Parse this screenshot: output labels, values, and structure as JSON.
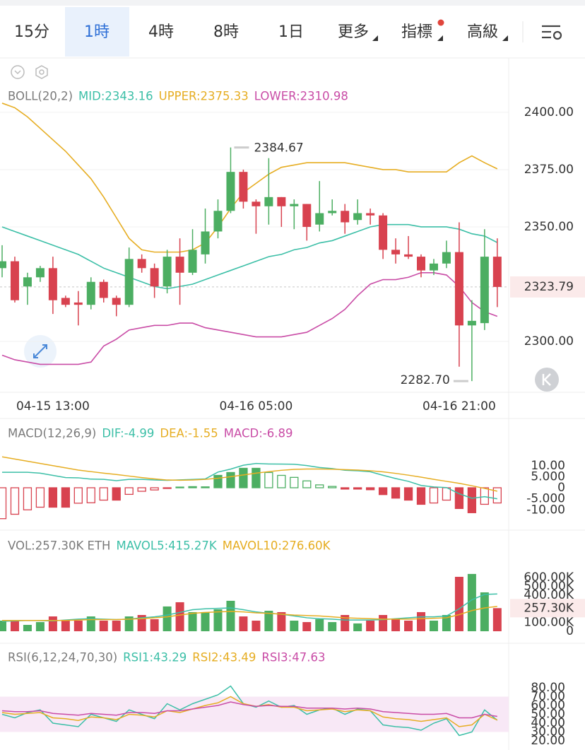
{
  "tabs": [
    "15分",
    "1時",
    "4時",
    "8時",
    "1日",
    "更多",
    "指標",
    "高級"
  ],
  "selected_tab": 1,
  "chart_data": [
    {
      "type": "candlestick",
      "legend": [
        {
          "text": "BOLL(20,2)",
          "color": "#7a7a7a"
        },
        {
          "text": "MID:2343.16",
          "color": "#3cbfa7"
        },
        {
          "text": "UPPER:2375.33",
          "color": "#e6ad22"
        },
        {
          "text": "LOWER:2310.98",
          "color": "#c94ca6"
        }
      ],
      "categories": [
        null,
        null,
        null,
        null,
        "04-15 13:00",
        null,
        null,
        null,
        null,
        null,
        null,
        null,
        null,
        null,
        null,
        null,
        null,
        null,
        null,
        null,
        "04-16 05:00",
        null,
        null,
        null,
        null,
        null,
        null,
        null,
        null,
        null,
        null,
        null,
        null,
        null,
        null,
        null,
        "04-16 21:00",
        null,
        null,
        null
      ],
      "open": [
        2332,
        2335,
        2324,
        2328,
        2332,
        2319,
        2317,
        2316,
        2326,
        2319,
        2316,
        2336,
        2332,
        2324,
        2337,
        2330,
        2338,
        2348,
        2357,
        2374,
        2361,
        2359,
        2363,
        2359,
        2360,
        2351,
        2356,
        2357,
        2353,
        2356,
        2355,
        2340,
        2338,
        2337,
        2331,
        2334,
        2339,
        2307,
        2308,
        2337
      ],
      "high": [
        2342,
        2337,
        2330,
        2333,
        2337,
        2320,
        2322,
        2328,
        2327,
        2320,
        2341,
        2338,
        2334,
        2340,
        2345,
        2349,
        2358,
        2362,
        2384.67,
        2375,
        2362,
        2380,
        2363,
        2362,
        2360,
        2370,
        2362,
        2360,
        2362,
        2358,
        2356,
        2345,
        2346,
        2338,
        2336,
        2344,
        2352,
        2318,
        2349,
        2345
      ],
      "low": [
        2328,
        2317,
        2316,
        2326,
        2312,
        2315,
        2307,
        2314,
        2317,
        2311,
        2315,
        2330,
        2319,
        2321,
        2316,
        2329,
        2334,
        2345,
        2356,
        2358,
        2347,
        2351,
        2350,
        2349,
        2344,
        2348,
        2355,
        2347,
        2351,
        2351,
        2336,
        2334,
        2336,
        2328,
        2329,
        2332,
        2289,
        2282.7,
        2305,
        2315
      ],
      "close": [
        2335,
        2318,
        2328,
        2332,
        2318,
        2316,
        2316,
        2326,
        2319,
        2316,
        2336,
        2332,
        2324,
        2337,
        2330,
        2340,
        2348,
        2357,
        2374,
        2361,
        2359,
        2363,
        2359,
        2360,
        2350,
        2356,
        2357,
        2352,
        2356,
        2355,
        2340,
        2338,
        2337,
        2331,
        2334,
        2339,
        2307,
        2309,
        2337,
        2323.79
      ],
      "up_color": "#4cae62",
      "down_color": "#d8424f",
      "series": [
        {
          "color": "#3cbfa7",
          "values": [
            2350,
            2348,
            2346,
            2344,
            2342,
            2340,
            2338,
            2335,
            2332,
            2330,
            2328,
            2326,
            2324,
            2323,
            2324,
            2325,
            2327,
            2329,
            2331,
            2333,
            2335,
            2337,
            2338,
            2340,
            2341,
            2343,
            2344,
            2346,
            2348,
            2350,
            2351,
            2351,
            2351,
            2350,
            2350,
            2350,
            2349,
            2347,
            2346,
            2343.16
          ]
        },
        {
          "color": "#e6ad22",
          "values": [
            2404,
            2402,
            2398,
            2393,
            2388,
            2383,
            2377,
            2371,
            2363,
            2354,
            2345,
            2340,
            2339,
            2339,
            2339,
            2340,
            2343,
            2350,
            2358,
            2365,
            2369,
            2373,
            2376,
            2377,
            2378,
            2378,
            2378,
            2378,
            2377,
            2376,
            2375,
            2375,
            2374,
            2374,
            2374,
            2374,
            2378,
            2381,
            2378,
            2375.33
          ]
        },
        {
          "color": "#c94ca6",
          "values": [
            2294,
            2292,
            2291,
            2290,
            2290,
            2290,
            2290,
            2291,
            2298,
            2301,
            2305,
            2306,
            2307,
            2307,
            2308,
            2308,
            2306,
            2305,
            2304,
            2303,
            2302,
            2302,
            2302,
            2303,
            2304,
            2307,
            2310,
            2314,
            2320,
            2325,
            2327,
            2327,
            2328,
            2330,
            2330,
            2329,
            2324,
            2317,
            2313,
            2310.98
          ]
        }
      ],
      "annotations": {
        "high": "2384.67",
        "low": "2282.70",
        "last": "2323.79"
      },
      "ylim": [
        2277.8,
        2422.8
      ],
      "yticks": [
        {
          "value": 2400,
          "label": "2400.00"
        },
        {
          "value": 2375,
          "label": "2375.00"
        },
        {
          "value": 2350,
          "label": "2350.00"
        },
        {
          "value": 2300,
          "label": "2300.00"
        }
      ],
      "grid": true
    },
    {
      "type": "macd",
      "legend": [
        {
          "text": "MACD(12,26,9)",
          "color": "#7a7a7a"
        },
        {
          "text": "DIF:-4.99",
          "color": "#3cbfa7"
        },
        {
          "text": "DEA:-1.55",
          "color": "#e6ad22"
        },
        {
          "text": "MACD:-6.89",
          "color": "#c94ca6"
        }
      ],
      "values": [
        -14,
        -12,
        -10,
        -8.8,
        -8.8,
        -8.8,
        -7,
        -6.8,
        -5.6,
        -5.6,
        -3,
        -1.6,
        -1,
        -0.3,
        0.3,
        0.5,
        0.4,
        5.6,
        6.9,
        8.8,
        8.8,
        6.9,
        5.6,
        4.7,
        3.1,
        1.3,
        0.6,
        -0.6,
        -0.6,
        -0.9,
        -3.1,
        -4.7,
        -5.6,
        -7.5,
        -6.9,
        -5.6,
        -9.4,
        -11.3,
        -7.5,
        -6.89
      ],
      "up_color": "#4cae62",
      "down_color": "#d8424f",
      "series": [
        {
          "color": "#3cbfa7",
          "values": [
            7,
            7,
            7,
            6.6,
            5.6,
            4.6,
            4.5,
            3.9,
            3.8,
            3.2,
            3.8,
            3.8,
            3.5,
            3.35,
            3.55,
            3.75,
            4,
            7.1,
            8.45,
            10.2,
            11,
            10.75,
            10.7,
            10.65,
            10.05,
            9.15,
            8.7,
            7.9,
            7.7,
            7.25,
            5.65,
            4.15,
            2.9,
            1.05,
            0.35,
            0.1,
            -2.7,
            -4.75,
            -4.05,
            -4.99
          ]
        },
        {
          "color": "#e6ad22",
          "values": [
            14,
            13,
            12,
            11,
            10,
            9,
            8,
            7.3,
            6.6,
            6,
            5.3,
            4.6,
            4,
            3.5,
            3.4,
            3.5,
            3.8,
            4.3,
            5,
            5.8,
            6.6,
            7.3,
            7.9,
            8.3,
            8.5,
            8.5,
            8.4,
            8.2,
            8,
            7.7,
            7.2,
            6.5,
            5.7,
            4.8,
            3.8,
            2.9,
            2,
            0.9,
            -0.3,
            -1.55
          ]
        }
      ],
      "ylim": [
        -16,
        16
      ],
      "yticks": [
        {
          "value": 10,
          "label": "10.00"
        },
        {
          "value": 5,
          "label": "5.000"
        },
        0,
        {
          "value": -5,
          "label": "-5.000"
        },
        {
          "value": -10,
          "label": "-10.00"
        }
      ]
    },
    {
      "type": "volume",
      "legend": [
        {
          "text": "VOL:257.30K ETH",
          "color": "#7a7a7a"
        },
        {
          "text": "MAVOL5:415.27K",
          "color": "#3cbfa7"
        },
        {
          "text": "MAVOL10:276.60K",
          "color": "#e6ad22"
        }
      ],
      "values": [
        118000,
        118000,
        71000,
        102000,
        165000,
        118000,
        118000,
        165000,
        118000,
        118000,
        165000,
        181000,
        134000,
        276000,
        323000,
        213000,
        213000,
        244000,
        339000,
        165000,
        118000,
        228000,
        213000,
        118000,
        102000,
        134000,
        102000,
        181000,
        87000,
        118000,
        181000,
        134000,
        118000,
        213000,
        118000,
        181000,
        606000,
        638000,
        433000,
        257300
      ],
      "series": [
        {
          "color": "#3cbfa7",
          "values": [
            110000,
            115000,
            120000,
            118000,
            115000,
            125000,
            135000,
            140000,
            135000,
            130000,
            135000,
            150000,
            160000,
            180000,
            210000,
            240000,
            250000,
            255000,
            260000,
            240000,
            215000,
            200000,
            190000,
            170000,
            150000,
            140000,
            135000,
            125000,
            125000,
            125000,
            130000,
            140000,
            150000,
            160000,
            160000,
            170000,
            250000,
            350000,
            410000,
            415270
          ]
        },
        {
          "color": "#e6ad22",
          "values": [
            120000,
            120000,
            120000,
            120000,
            120000,
            120000,
            125000,
            130000,
            130000,
            130000,
            135000,
            140000,
            150000,
            160000,
            180000,
            200000,
            210000,
            215000,
            220000,
            215000,
            205000,
            200000,
            190000,
            180000,
            175000,
            170000,
            160000,
            150000,
            145000,
            140000,
            135000,
            135000,
            135000,
            140000,
            145000,
            150000,
            185000,
            230000,
            260000,
            276600
          ]
        }
      ],
      "last_label": "257.30K",
      "ylim": [
        0,
        732000
      ],
      "yticks": [
        {
          "value": 600000,
          "label": "600.00K"
        },
        {
          "value": 500000,
          "label": "500.00K"
        },
        {
          "value": 400000,
          "label": "400.00K"
        },
        {
          "value": 100000,
          "label": "100.00K"
        },
        0
      ]
    },
    {
      "type": "rsi",
      "legend": [
        {
          "text": "RSI(6,12,24,70,30)",
          "color": "#7a7a7a"
        },
        {
          "text": "RSI1:43.29",
          "color": "#3cbfa7"
        },
        {
          "text": "RSI2:43.49",
          "color": "#e6ad22"
        },
        {
          "text": "RSI3:47.63",
          "color": "#c94ca6"
        }
      ],
      "band": [
        30,
        70
      ],
      "series": [
        {
          "color": "#3cbfa7",
          "values": [
            50,
            46,
            52,
            55,
            40,
            38,
            36,
            50,
            46,
            42,
            55,
            50,
            45,
            62,
            55,
            62,
            67,
            72,
            82,
            62,
            58,
            65,
            58,
            60,
            50,
            55,
            57,
            50,
            56,
            54,
            38,
            36,
            35,
            32,
            40,
            45,
            26,
            30,
            55,
            43.29
          ]
        },
        {
          "color": "#e6ad22",
          "values": [
            52,
            50,
            51,
            52,
            46,
            45,
            43,
            47,
            46,
            44,
            50,
            49,
            47,
            54,
            52,
            56,
            60,
            63,
            70,
            62,
            59,
            61,
            58,
            58,
            54,
            55,
            56,
            53,
            55,
            54,
            47,
            45,
            44,
            42,
            44,
            46,
            36,
            38,
            50,
            43.49
          ]
        },
        {
          "color": "#c94ca6",
          "values": [
            54,
            53,
            53,
            54,
            51,
            50,
            49,
            51,
            50,
            49,
            52,
            52,
            51,
            54,
            54,
            56,
            58,
            60,
            64,
            61,
            59,
            60,
            59,
            59,
            57,
            57,
            57,
            56,
            57,
            56,
            53,
            52,
            51,
            50,
            50,
            51,
            46,
            46,
            50,
            47.63
          ]
        }
      ],
      "ylim": [
        12,
        98.4
      ],
      "yticks": [
        {
          "value": 80,
          "label": "80.00"
        },
        {
          "value": 70,
          "label": "70.00"
        },
        {
          "value": 60,
          "label": "60.00"
        },
        {
          "value": 50,
          "label": "50.00"
        },
        {
          "value": 40,
          "label": "40.00"
        },
        {
          "value": 30,
          "label": "30.00"
        },
        {
          "value": 20,
          "label": "20.00"
        }
      ]
    }
  ]
}
